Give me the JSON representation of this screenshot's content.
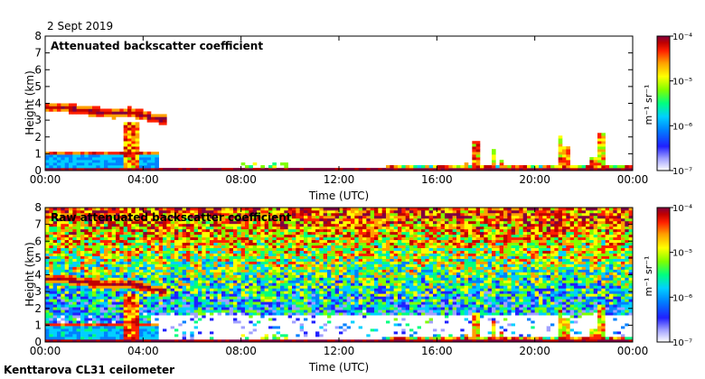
{
  "page": {
    "date_label": "2 Sept 2019",
    "footer_label": "Kenttarova CL31 ceilometer"
  },
  "colors": {
    "scale": [
      "#ffffff",
      "#a0a0ff",
      "#2020ff",
      "#0080ff",
      "#00d0ff",
      "#00ff80",
      "#80ff00",
      "#ffff00",
      "#ffa000",
      "#ff2000",
      "#c00000",
      "#800040"
    ]
  },
  "chart_data": [
    {
      "type": "heatmap",
      "title": "Attenuated backscatter coefficient",
      "xlabel": "Time (UTC)",
      "ylabel": "Height (km)",
      "x_ticks": [
        "00:00",
        "04:00",
        "08:00",
        "12:00",
        "16:00",
        "20:00",
        "00:00"
      ],
      "xlim_hours": [
        0,
        24
      ],
      "y_ticks": [
        "0",
        "1",
        "2",
        "3",
        "4",
        "5",
        "6",
        "7",
        "8"
      ],
      "ylim_km": [
        0,
        8
      ],
      "colorbar": {
        "unit": "m⁻¹ sr⁻¹",
        "ticks": [
          "10⁻⁴",
          "10⁻⁵",
          "10⁻⁶",
          "10⁻⁷"
        ],
        "range": [
          1e-07,
          0.0001
        ],
        "scale": "log"
      },
      "features": {
        "elevated_layer": {
          "start_h": 0,
          "end_h": 4.9,
          "height_km": [
            3.8,
            3.8,
            3.6,
            3.5,
            3.4,
            3.5,
            3.2,
            3.0
          ]
        },
        "boundary_layer_top_km": 1.1,
        "convective_plumes_h": [
          17.2,
          17.6,
          18.3,
          18.6,
          21.0,
          21.3,
          22.4,
          22.7
        ]
      }
    },
    {
      "type": "heatmap",
      "title": "Raw attenuated backscatter coefficient",
      "xlabel": "Time (UTC)",
      "ylabel": "Height (km)",
      "x_ticks": [
        "00:00",
        "04:00",
        "08:00",
        "12:00",
        "16:00",
        "20:00",
        "00:00"
      ],
      "xlim_hours": [
        0,
        24
      ],
      "y_ticks": [
        "0",
        "1",
        "2",
        "3",
        "4",
        "5",
        "6",
        "7",
        "8"
      ],
      "ylim_km": [
        0,
        8
      ],
      "colorbar": {
        "unit": "m⁻¹ sr⁻¹",
        "ticks": [
          "10⁻⁴",
          "10⁻⁵",
          "10⁻⁶",
          "10⁻⁷"
        ],
        "range": [
          1e-07,
          0.0001
        ],
        "scale": "log"
      },
      "features": {
        "noise_dominant": true,
        "elevated_layer": {
          "start_h": 0,
          "end_h": 4.9,
          "height_km": [
            3.8,
            3.8,
            3.6,
            3.5,
            3.4,
            3.5,
            3.2,
            3.0
          ]
        },
        "convective_plumes_h": [
          17.2,
          17.6,
          18.3,
          18.6,
          21.0,
          21.3,
          22.4,
          22.7
        ]
      }
    }
  ]
}
